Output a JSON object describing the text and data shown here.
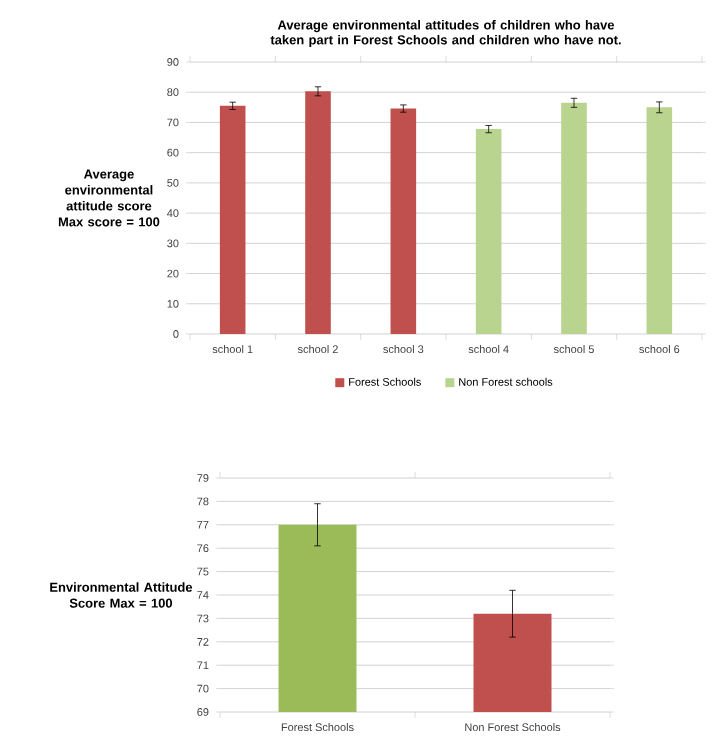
{
  "chart_data": [
    {
      "type": "bar",
      "title": "Average environmental attitudes of children who have taken part in Forest Schools and children who have not.",
      "ylabel": "Average environmental attitude score Max score = 100",
      "categories": [
        "school 1",
        "school 2",
        "school 3",
        "school 4",
        "school 5",
        "school 6"
      ],
      "ylim": [
        0,
        90
      ],
      "yticks": [
        0,
        10,
        20,
        30,
        40,
        50,
        60,
        70,
        80,
        90
      ],
      "grid": "y",
      "legend": "bottom",
      "series": [
        {
          "name": "Forest Schools",
          "color": "#c0504d",
          "values": [
            75.5,
            80.3,
            74.6,
            null,
            null,
            null
          ],
          "errors": [
            1.2,
            1.5,
            1.2,
            null,
            null,
            null
          ]
        },
        {
          "name": "Non Forest schools",
          "color": "#b9d48f",
          "values": [
            null,
            null,
            null,
            67.8,
            76.5,
            75.0
          ],
          "errors": [
            null,
            null,
            null,
            1.2,
            1.5,
            1.8
          ]
        }
      ]
    },
    {
      "type": "bar",
      "ylabel": "Environmental Attitude Score Max = 100",
      "categories": [
        "Forest Schools",
        "Non Forest Schools"
      ],
      "values": [
        77.0,
        73.2
      ],
      "errors": [
        0.9,
        1.0
      ],
      "colors": [
        "#9bbb59",
        "#c0504d"
      ],
      "ylim": [
        69,
        79
      ],
      "yticks": [
        69,
        70,
        71,
        72,
        73,
        74,
        75,
        76,
        77,
        78,
        79
      ],
      "grid": "y",
      "legend": false
    }
  ]
}
